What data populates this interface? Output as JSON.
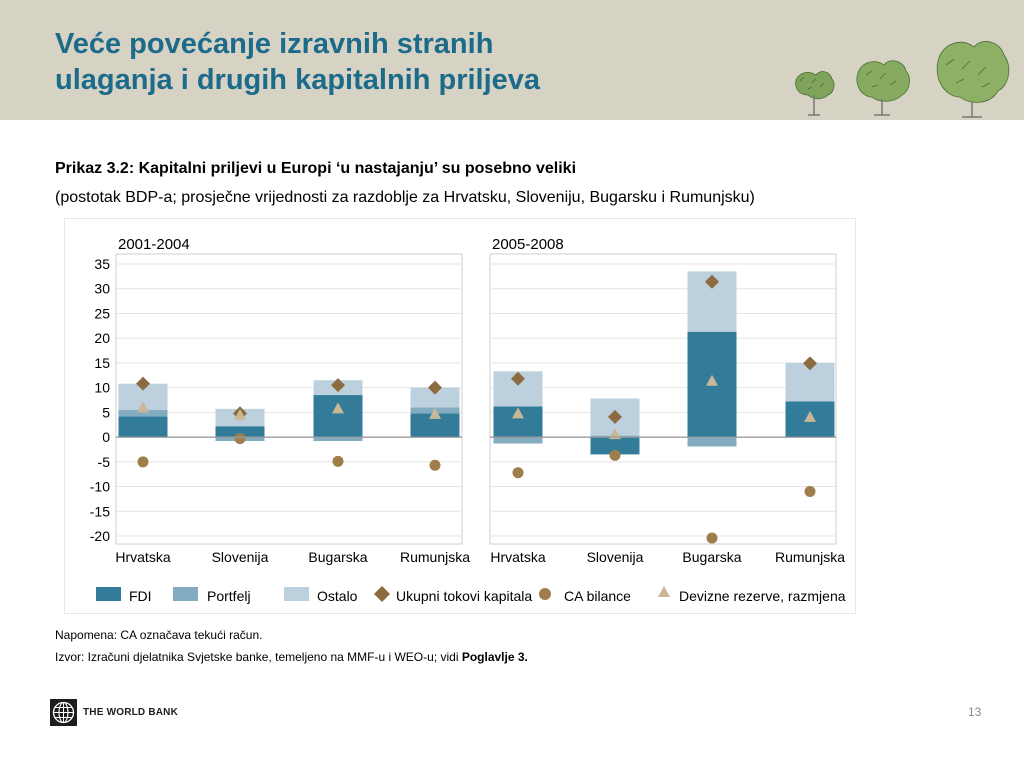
{
  "title": {
    "line1": "Veće povećanje izravnih stranih",
    "line2": "ulaganja i drugih kapitalnih priljeva"
  },
  "chart_data": {
    "type": "bar",
    "title": "Prikaz 3.2: Kapitalni priljevi u Europi ‘u nastajanju’ su posebno veliki",
    "subtitle": "(postotak BDP-a; prosječne vrijednosti za razdoblje za Hrvatsku, Sloveniju, Bugarsku i Rumunjsku)",
    "ylim": [
      -20,
      35
    ],
    "yticks": [
      "35",
      "30",
      "25",
      "20",
      "15",
      "10",
      "5",
      "0",
      "-5",
      "-10",
      "-15",
      "-20"
    ],
    "legend_position": "bottom",
    "panels": [
      {
        "label": "2001-2004",
        "categories": [
          "Hrvatska",
          "Slovenija",
          "Bugarska",
          "Rumunjska"
        ],
        "series": [
          {
            "name": "FDI",
            "values": [
              4.2,
              2.2,
              8.5,
              4.8
            ]
          },
          {
            "name": "Portfelj",
            "values": [
              1.3,
              -0.8,
              -0.8,
              1.2
            ]
          },
          {
            "name": "Ostalo",
            "values": [
              5.3,
              3.5,
              3.0,
              4.0
            ]
          },
          {
            "name": "Ukupni tokovi kapitala",
            "values": [
              10.8,
              4.8,
              10.5,
              10.0
            ]
          },
          {
            "name": "CA bilance",
            "values": [
              -5.0,
              -0.3,
              -4.9,
              -5.7
            ]
          },
          {
            "name": "Devizne rezerve, razmjena",
            "values": [
              6.0,
              4.5,
              5.8,
              4.7
            ]
          }
        ]
      },
      {
        "label": "2005-2008",
        "categories": [
          "Hrvatska",
          "Slovenija",
          "Bugarska",
          "Rumunjska"
        ],
        "series": [
          {
            "name": "FDI",
            "values": [
              6.2,
              -3.5,
              21.3,
              7.2
            ]
          },
          {
            "name": "Portfelj",
            "values": [
              -1.3,
              0.3,
              -1.9,
              0.0
            ]
          },
          {
            "name": "Ostalo",
            "values": [
              7.1,
              7.5,
              12.2,
              7.8
            ]
          },
          {
            "name": "Ukupni tokovi kapitala",
            "values": [
              11.8,
              4.1,
              31.4,
              14.9
            ]
          },
          {
            "name": "CA bilance",
            "values": [
              -7.2,
              -3.7,
              -20.4,
              -11.0
            ]
          },
          {
            "name": "Devizne rezerve, razmjena",
            "values": [
              4.8,
              0.6,
              11.4,
              4.1
            ]
          }
        ]
      }
    ],
    "colors": {
      "FDI": "#327c9a",
      "Portfelj": "#84acc0",
      "Ostalo": "#bcd1dd",
      "Ukupni tokovi kapitala": "#8b6b3f",
      "CA bilance": "#a07e4c",
      "Devizne rezerve, razmjena": "#cab795"
    }
  },
  "notes": {
    "napomena": "Napomena: CA označava tekući račun.",
    "izvor_prefix": "Izvor: Izračuni djelatnika Svjetske banke, temeljeno na MMF-u i WEO-u; vidi ",
    "izvor_bold": "Poglavlje 3."
  },
  "footer": {
    "brand": "THE WORLD BANK",
    "page_number": "13"
  }
}
